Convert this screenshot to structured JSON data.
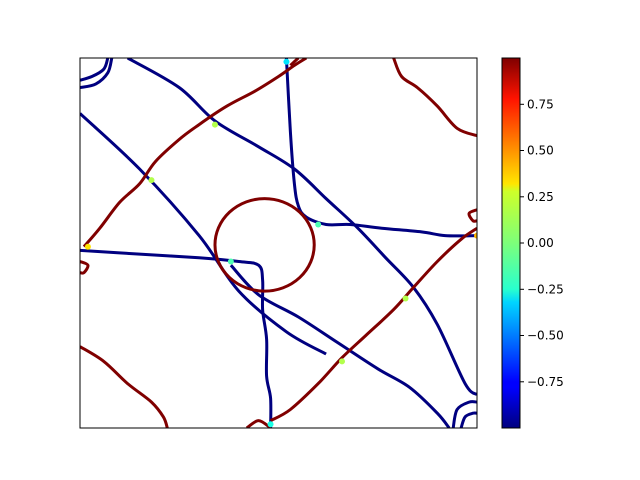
{
  "chart_data": {
    "type": "heatmap",
    "title": "",
    "xlabel": "",
    "ylabel": "",
    "x_ticks_visible": false,
    "y_ticks_visible": false,
    "colormap": "jet",
    "background_color": "#ffffff",
    "value_range": [
      -1.0,
      1.0
    ],
    "colorbar": {
      "location": "right",
      "ticks": [
        0.75,
        0.5,
        0.25,
        0.0,
        -0.25,
        -0.5,
        -0.75
      ],
      "tick_labels": [
        "0.75",
        "0.50",
        "0.25",
        "0.00",
        "−0.25",
        "−0.50",
        "−0.75"
      ]
    },
    "curves_domain": {
      "x": [
        0,
        100
      ],
      "y": [
        0,
        100
      ]
    },
    "curves": [
      {
        "name": "blue-1",
        "value": -1,
        "points": [
          [
            0,
            15
          ],
          [
            15,
            30
          ],
          [
            30,
            48
          ],
          [
            40,
            63
          ],
          [
            52,
            74
          ],
          [
            62,
            80
          ]
        ]
      },
      {
        "name": "blue-2",
        "value": -1,
        "points": [
          [
            12,
            0
          ],
          [
            25,
            8
          ],
          [
            34,
            17
          ],
          [
            45,
            24
          ],
          [
            54,
            30
          ],
          [
            62,
            38
          ],
          [
            70,
            46
          ],
          [
            77,
            54
          ],
          [
            84,
            62
          ],
          [
            90,
            72
          ],
          [
            97,
            88
          ],
          [
            100,
            91
          ]
        ]
      },
      {
        "name": "blue-3",
        "value": -1,
        "points": [
          [
            38,
            56
          ],
          [
            45,
            64
          ],
          [
            55,
            70
          ],
          [
            65,
            77
          ],
          [
            75,
            84
          ],
          [
            83,
            89
          ],
          [
            90,
            96
          ],
          [
            93,
            100
          ]
        ]
      },
      {
        "name": "blue-4",
        "value": -1,
        "points": [
          [
            52,
            0
          ],
          [
            53,
            20
          ],
          [
            54,
            34
          ],
          [
            55,
            40
          ],
          [
            57,
            43
          ],
          [
            62,
            45
          ],
          [
            68,
            45
          ],
          [
            76,
            46
          ],
          [
            86,
            47
          ],
          [
            92,
            48
          ],
          [
            100,
            48
          ]
        ]
      },
      {
        "name": "blue-5",
        "value": -1,
        "points": [
          [
            0,
            52
          ],
          [
            15,
            53
          ],
          [
            30,
            54
          ],
          [
            40,
            55
          ],
          [
            45,
            56
          ],
          [
            46,
            60
          ],
          [
            46,
            68
          ],
          [
            47,
            76
          ],
          [
            47,
            86
          ],
          [
            48,
            92
          ],
          [
            48,
            100
          ]
        ]
      },
      {
        "name": "blue-corner-tl",
        "value": -1,
        "points": [
          [
            0,
            6
          ],
          [
            3,
            5
          ],
          [
            6,
            3
          ],
          [
            7,
            0
          ]
        ]
      },
      {
        "name": "blue-corner-tl-2",
        "value": -1,
        "points": [
          [
            0,
            8
          ],
          [
            4,
            7
          ],
          [
            7,
            4
          ],
          [
            8,
            0
          ]
        ]
      },
      {
        "name": "blue-corner-br",
        "value": -1,
        "points": [
          [
            94,
            100
          ],
          [
            95,
            95
          ],
          [
            98,
            93
          ],
          [
            100,
            93
          ]
        ]
      },
      {
        "name": "blue-corner-br-2",
        "value": -1,
        "points": [
          [
            96,
            100
          ],
          [
            97,
            97
          ],
          [
            99,
            96
          ],
          [
            100,
            96
          ]
        ]
      },
      {
        "name": "red-1",
        "value": 1,
        "points": [
          [
            1,
            51
          ],
          [
            5,
            46
          ],
          [
            10,
            39
          ],
          [
            15,
            34
          ],
          [
            19,
            28
          ],
          [
            25,
            22
          ],
          [
            30,
            18
          ],
          [
            37,
            13
          ],
          [
            44,
            9
          ],
          [
            50,
            5
          ],
          [
            54,
            2
          ],
          [
            57,
            0
          ]
        ]
      },
      {
        "name": "red-2",
        "value": 1,
        "points": [
          [
            48,
            98
          ],
          [
            53,
            95
          ],
          [
            60,
            88
          ],
          [
            66,
            81
          ],
          [
            72,
            75
          ],
          [
            79,
            68
          ],
          [
            84,
            62
          ],
          [
            90,
            55
          ],
          [
            96,
            49
          ],
          [
            100,
            46
          ]
        ]
      },
      {
        "name": "red-3",
        "value": 1,
        "points": [
          [
            79,
            0
          ],
          [
            81,
            5
          ],
          [
            85,
            8
          ],
          [
            90,
            13
          ],
          [
            95,
            19
          ],
          [
            100,
            21
          ]
        ]
      },
      {
        "name": "red-4",
        "value": 1,
        "points": [
          [
            0,
            78
          ],
          [
            6,
            82
          ],
          [
            12,
            88
          ],
          [
            18,
            93
          ],
          [
            21,
            97
          ],
          [
            22,
            100
          ]
        ]
      },
      {
        "name": "red-5",
        "value": 1,
        "points": [
          [
            42,
            100
          ],
          [
            45,
            98
          ],
          [
            48,
            100
          ]
        ]
      },
      {
        "name": "red-6",
        "value": 1,
        "points": [
          [
            0,
            55
          ],
          [
            2,
            56
          ],
          [
            1,
            58
          ],
          [
            0,
            58
          ]
        ]
      },
      {
        "name": "red-7",
        "value": 1,
        "points": [
          [
            100,
            41
          ],
          [
            98,
            42
          ],
          [
            99,
            44
          ],
          [
            100,
            44
          ]
        ]
      },
      {
        "name": "red-8",
        "value": 1,
        "points": [
          [
            53,
            2
          ],
          [
            55,
            0
          ]
        ]
      }
    ],
    "circle": {
      "name": "red-circle",
      "value": 1,
      "center": [
        46.5,
        50.5
      ],
      "radius": 12.5
    },
    "saddle_points": [
      {
        "x": 34,
        "y": 18,
        "value": 0.1
      },
      {
        "x": 18,
        "y": 33,
        "value": 0.1
      },
      {
        "x": 2,
        "y": 51,
        "value": 0.3
      },
      {
        "x": 66,
        "y": 82,
        "value": 0.1
      },
      {
        "x": 82,
        "y": 65,
        "value": 0.1
      },
      {
        "x": 100,
        "y": 48,
        "value": 0.4
      },
      {
        "x": 52,
        "y": 1,
        "value": -0.3
      },
      {
        "x": 48,
        "y": 99,
        "value": -0.2
      },
      {
        "x": 38,
        "y": 55,
        "value": -0.1
      },
      {
        "x": 60,
        "y": 45,
        "value": -0.1
      }
    ]
  }
}
